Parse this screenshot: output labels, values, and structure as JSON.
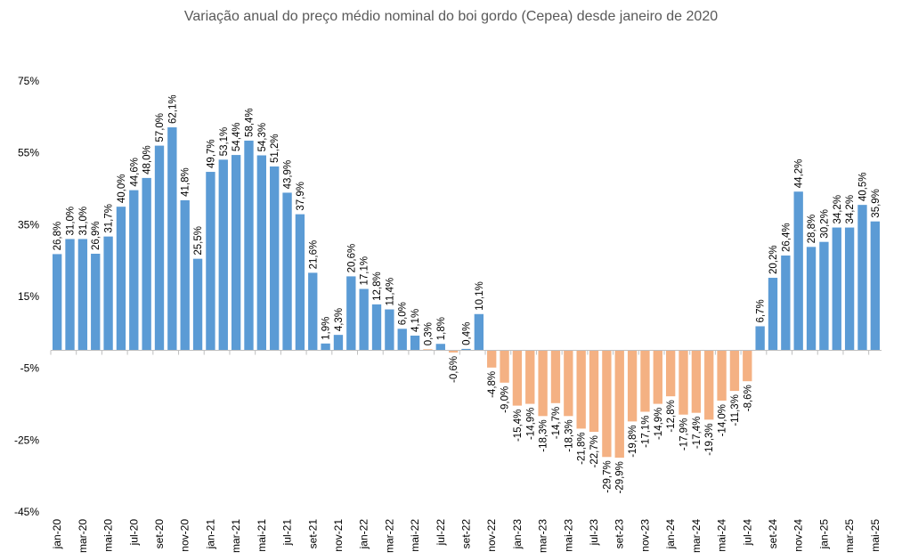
{
  "chart_data": {
    "type": "bar",
    "title": "Variação anual do preço médio nominal do boi gordo (Cepea) desde janeiro de 2020",
    "xlabel": "",
    "ylabel": "",
    "ylim": [
      -45,
      75
    ],
    "yticks": [
      "75%",
      "55%",
      "35%",
      "15%",
      "-5%",
      "-25%",
      "-45%"
    ],
    "ytick_values": [
      75,
      55,
      35,
      15,
      -5,
      -25,
      -45
    ],
    "positive_color": "#5B9BD5",
    "negative_color": "#F4B183",
    "categories": [
      "jan-20",
      "fev-20",
      "mar-20",
      "abr-20",
      "mai-20",
      "jun-20",
      "jul-20",
      "ago-20",
      "set-20",
      "out-20",
      "nov-20",
      "dez-20",
      "jan-21",
      "fev-21",
      "mar-21",
      "abr-21",
      "mai-21",
      "jun-21",
      "jul-21",
      "ago-21",
      "set-21",
      "out-21",
      "nov-21",
      "dez-21",
      "jan-22",
      "fev-22",
      "mar-22",
      "abr-22",
      "mai-22",
      "jun-22",
      "jul-22",
      "ago-22",
      "set-22",
      "out-22",
      "nov-22",
      "dez-22",
      "jan-23",
      "fev-23",
      "mar-23",
      "abr-23",
      "mai-23",
      "jun-23",
      "jul-23",
      "ago-23",
      "set-23",
      "out-23",
      "nov-23",
      "dez-23",
      "jan-24",
      "fev-24",
      "mar-24",
      "abr-24",
      "mai-24",
      "jun-24",
      "jul-24",
      "ago-24",
      "set-24",
      "out-24",
      "nov-24",
      "dez-24",
      "jan-25",
      "fev-25",
      "mar-25",
      "abr-25",
      "mai-25"
    ],
    "values": [
      26.8,
      31.0,
      31.0,
      26.9,
      31.7,
      40.0,
      44.6,
      48.0,
      57.0,
      62.1,
      41.8,
      25.5,
      49.7,
      53.1,
      54.4,
      58.4,
      54.3,
      51.2,
      43.9,
      37.9,
      21.6,
      1.9,
      4.3,
      20.6,
      17.1,
      12.8,
      11.4,
      6.0,
      4.1,
      0.3,
      1.8,
      -0.6,
      0.4,
      10.1,
      -4.8,
      -9.0,
      -15.4,
      -14.9,
      -18.3,
      -14.7,
      -18.3,
      -21.8,
      -22.7,
      -29.7,
      -29.9,
      -19.8,
      -17.1,
      -14.9,
      -12.8,
      -17.9,
      -17.4,
      -19.3,
      -14.0,
      -11.3,
      -8.6,
      6.7,
      20.2,
      26.4,
      44.2,
      28.8,
      30.2,
      34.2,
      34.2,
      40.5,
      35.9
    ],
    "data_labels": [
      "26,8%",
      "31,0%",
      "31,0%",
      "26,9%",
      "31,7%",
      "40,0%",
      "44,6%",
      "48,0%",
      "57,0%",
      "62,1%",
      "41,8%",
      "25,5%",
      "49,7%",
      "53,1%",
      "54,4%",
      "58,4%",
      "54,3%",
      "51,2%",
      "43,9%",
      "37,9%",
      "21,6%",
      "1,9%",
      "4,3%",
      "20,6%",
      "17,1%",
      "12,8%",
      "11,4%",
      "6,0%",
      "4,1%",
      "0,3%",
      "1,8%",
      "-0,6%",
      "0,4%",
      "10,1%",
      "-4,8%",
      "-9,0%",
      "-15,4%",
      "-14,9%",
      "-18,3%",
      "-14,7%",
      "-18,3%",
      "-21,8%",
      "-22,7%",
      "-29,7%",
      "-29,9%",
      "-19,8%",
      "-17,1%",
      "-14,9%",
      "-12,8%",
      "-17,9%",
      "-17,4%",
      "-19,3%",
      "-14,0%",
      "-11,3%",
      "-8,6%",
      "6,7%",
      "20,2%",
      "26,4%",
      "44,2%",
      "28,8%",
      "30,2%",
      "34,2%",
      "34,2%",
      "40,5%",
      "35,9%"
    ]
  }
}
